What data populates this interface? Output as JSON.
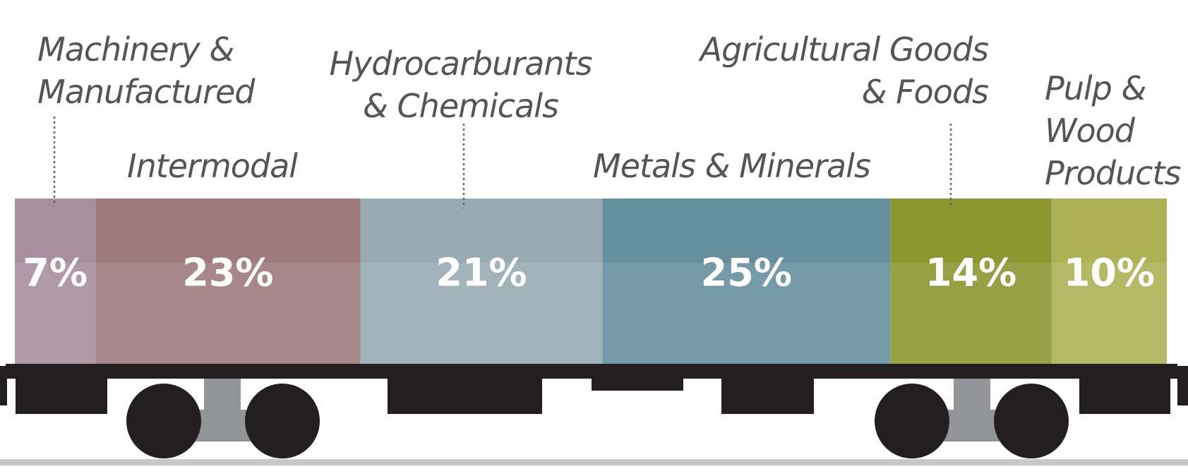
{
  "chart_data": {
    "type": "stacked_bar",
    "categories": [
      "Machinery & Manufactured",
      "Intermodal",
      "Hydrocarburants & Chemicals",
      "Metals & Minerals",
      "Agricultural Goods & Foods",
      "Pulp & Wood Products"
    ],
    "values": [
      7,
      23,
      21,
      25,
      14,
      10
    ],
    "value_labels": [
      "7%",
      "23%",
      "21%",
      "25%",
      "14%",
      "10%"
    ],
    "colors": [
      "#a98ea0",
      "#9e7a7d",
      "#98abb3",
      "#668f9e",
      "#8c962f",
      "#adb053"
    ]
  }
}
